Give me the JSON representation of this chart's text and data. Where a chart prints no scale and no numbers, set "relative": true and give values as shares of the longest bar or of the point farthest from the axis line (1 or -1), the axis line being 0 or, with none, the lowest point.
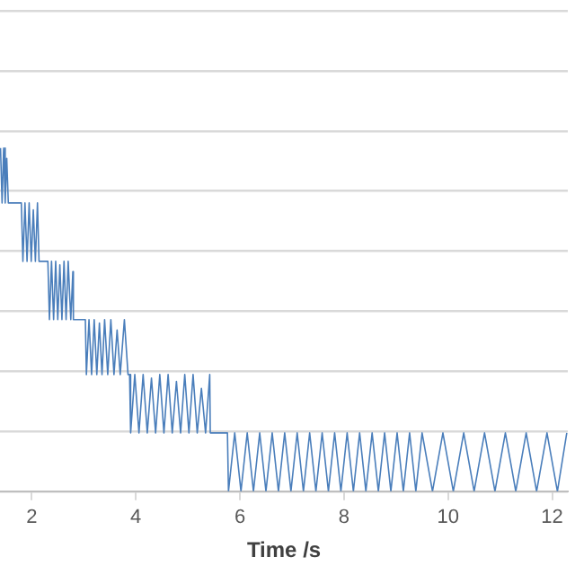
{
  "chart_data": {
    "type": "line",
    "xlabel": "Time /s",
    "relative": true,
    "grid": "y",
    "legend": false,
    "marker": "none",
    "line_style": "solid",
    "xlim": [
      1.39,
      12.3
    ],
    "xticks": [
      2,
      4,
      6,
      8,
      10,
      12
    ],
    "series": [
      {
        "color": "#4a7ebb",
        "x": [
          1.4,
          1.43,
          1.46,
          1.49,
          1.52,
          1.55,
          1.8,
          1.83,
          1.87,
          1.91,
          1.95,
          1.99,
          2.03,
          2.07,
          2.11,
          2.14,
          2.31,
          2.34,
          2.38,
          2.42,
          2.46,
          2.5,
          2.54,
          2.58,
          2.62,
          2.66,
          2.7,
          2.75,
          2.79,
          2.8,
          3.03,
          3.05,
          3.1,
          3.15,
          3.2,
          3.25,
          3.3,
          3.35,
          3.4,
          3.46,
          3.52,
          3.58,
          3.64,
          3.7,
          3.78,
          3.85,
          3.88,
          3.9,
          3.98,
          4.06,
          4.14,
          4.22,
          4.3,
          4.38,
          4.46,
          4.54,
          4.62,
          4.7,
          4.78,
          4.86,
          4.94,
          5.02,
          5.1,
          5.18,
          5.26,
          5.34,
          5.42,
          5.43,
          5.76,
          5.78,
          5.9,
          6.02,
          6.14,
          6.26,
          6.38,
          6.5,
          6.62,
          6.74,
          6.86,
          6.98,
          7.1,
          7.22,
          7.34,
          7.46,
          7.58,
          7.7,
          7.82,
          7.94,
          8.06,
          8.18,
          8.3,
          8.42,
          8.54,
          8.66,
          8.78,
          8.9,
          9.02,
          9.14,
          9.26,
          9.38,
          9.5,
          9.7,
          9.9,
          10.1,
          10.3,
          10.5,
          10.7,
          10.9,
          11.1,
          11.3,
          11.5,
          11.7,
          11.9,
          12.1,
          12.28
        ],
        "values": [
          1,
          0.84,
          1,
          0.84,
          0.97,
          0.84,
          0.84,
          0.67,
          0.84,
          0.67,
          0.84,
          0.67,
          0.82,
          0.67,
          0.84,
          0.67,
          0.67,
          0.5,
          0.67,
          0.5,
          0.67,
          0.5,
          0.66,
          0.5,
          0.67,
          0.5,
          0.67,
          0.5,
          0.64,
          0.5,
          0.5,
          0.34,
          0.5,
          0.34,
          0.5,
          0.34,
          0.49,
          0.34,
          0.5,
          0.34,
          0.5,
          0.34,
          0.47,
          0.34,
          0.5,
          0.34,
          0.34,
          0.17,
          0.34,
          0.17,
          0.34,
          0.17,
          0.33,
          0.17,
          0.34,
          0.17,
          0.34,
          0.17,
          0.32,
          0.17,
          0.34,
          0.17,
          0.34,
          0.17,
          0.3,
          0.17,
          0.34,
          0.17,
          0.17,
          0,
          0.17,
          0,
          0.17,
          0,
          0.17,
          0,
          0.17,
          0,
          0.17,
          0,
          0.17,
          0,
          0.17,
          0,
          0.17,
          0,
          0.17,
          0,
          0.17,
          0,
          0.17,
          0,
          0.17,
          0,
          0.17,
          0,
          0.17,
          0,
          0.17,
          0,
          0.17,
          0,
          0.17,
          0,
          0.17,
          0,
          0.17,
          0,
          0.17,
          0,
          0.17,
          0,
          0.17,
          0,
          0.17
        ]
      }
    ]
  }
}
